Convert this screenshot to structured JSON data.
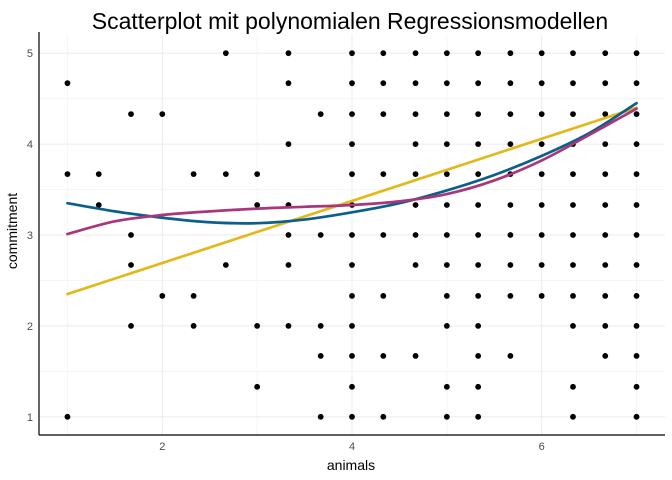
{
  "chart_data": {
    "type": "scatter",
    "title": "Scatterplot mit polynomialen Regressionsmodellen",
    "xlabel": "animals",
    "ylabel": "commitment",
    "xlim": [
      0.7,
      7.3
    ],
    "ylim": [
      0.8,
      5.2
    ],
    "x_ticks": [
      2,
      4,
      6
    ],
    "y_ticks": [
      1,
      2,
      3,
      4,
      5
    ],
    "x_minor": [
      1,
      3,
      5,
      7
    ],
    "y_minor": [
      1.5,
      2.5,
      3.5,
      4.5
    ],
    "grid": true,
    "legend": "none",
    "points": [
      [
        1,
        1
      ],
      [
        1,
        3.67
      ],
      [
        1,
        4.67
      ],
      [
        1.33,
        3.33
      ],
      [
        1.33,
        3.67
      ],
      [
        1.67,
        2
      ],
      [
        1.67,
        2.67
      ],
      [
        1.67,
        3
      ],
      [
        1.67,
        4.33
      ],
      [
        2,
        2.33
      ],
      [
        2,
        4.33
      ],
      [
        2.33,
        2
      ],
      [
        2.33,
        2.33
      ],
      [
        2.33,
        3.67
      ],
      [
        2.67,
        2.67
      ],
      [
        2.67,
        3.67
      ],
      [
        2.67,
        5
      ],
      [
        3,
        1.33
      ],
      [
        3,
        2
      ],
      [
        3,
        3.33
      ],
      [
        3,
        3.67
      ],
      [
        3.33,
        2
      ],
      [
        3.33,
        2.67
      ],
      [
        3.33,
        3
      ],
      [
        3.33,
        3.33
      ],
      [
        3.33,
        4
      ],
      [
        3.33,
        4.67
      ],
      [
        3.33,
        5
      ],
      [
        3.67,
        1
      ],
      [
        3.67,
        1.67
      ],
      [
        3.67,
        2
      ],
      [
        3.67,
        3
      ],
      [
        3.67,
        4.33
      ],
      [
        4,
        1
      ],
      [
        4,
        1.33
      ],
      [
        4,
        1.67
      ],
      [
        4,
        2
      ],
      [
        4,
        2.33
      ],
      [
        4,
        2.67
      ],
      [
        4,
        3
      ],
      [
        4,
        3.33
      ],
      [
        4,
        3.67
      ],
      [
        4,
        4
      ],
      [
        4,
        4.33
      ],
      [
        4,
        4.67
      ],
      [
        4,
        5
      ],
      [
        4.33,
        1
      ],
      [
        4.33,
        1.67
      ],
      [
        4.33,
        2.33
      ],
      [
        4.33,
        3
      ],
      [
        4.33,
        3.67
      ],
      [
        4.33,
        4.33
      ],
      [
        4.33,
        4.67
      ],
      [
        4.33,
        5
      ],
      [
        4.67,
        1.67
      ],
      [
        4.67,
        2.67
      ],
      [
        4.67,
        3
      ],
      [
        4.67,
        3.33
      ],
      [
        4.67,
        3.67
      ],
      [
        4.67,
        4
      ],
      [
        4.67,
        4.33
      ],
      [
        4.67,
        4.67
      ],
      [
        4.67,
        5
      ],
      [
        5,
        1
      ],
      [
        5,
        1.33
      ],
      [
        5,
        2
      ],
      [
        5,
        2.33
      ],
      [
        5,
        2.67
      ],
      [
        5,
        3
      ],
      [
        5,
        3.33
      ],
      [
        5,
        3.67
      ],
      [
        5,
        4
      ],
      [
        5,
        4.33
      ],
      [
        5,
        4.67
      ],
      [
        5,
        5
      ],
      [
        5.33,
        1
      ],
      [
        5.33,
        1.33
      ],
      [
        5.33,
        1.67
      ],
      [
        5.33,
        2
      ],
      [
        5.33,
        2.33
      ],
      [
        5.33,
        2.67
      ],
      [
        5.33,
        3
      ],
      [
        5.33,
        3.33
      ],
      [
        5.33,
        3.67
      ],
      [
        5.33,
        4
      ],
      [
        5.33,
        4.33
      ],
      [
        5.33,
        4.67
      ],
      [
        5.33,
        5
      ],
      [
        5.67,
        1.67
      ],
      [
        5.67,
        2.33
      ],
      [
        5.67,
        2.67
      ],
      [
        5.67,
        3
      ],
      [
        5.67,
        3.33
      ],
      [
        5.67,
        3.67
      ],
      [
        5.67,
        4
      ],
      [
        5.67,
        4.33
      ],
      [
        5.67,
        4.67
      ],
      [
        5.67,
        5
      ],
      [
        6,
        2.33
      ],
      [
        6,
        2.67
      ],
      [
        6,
        3
      ],
      [
        6,
        3.33
      ],
      [
        6,
        3.67
      ],
      [
        6,
        4
      ],
      [
        6,
        4.33
      ],
      [
        6,
        4.67
      ],
      [
        6,
        5
      ],
      [
        6.33,
        1
      ],
      [
        6.33,
        1.33
      ],
      [
        6.33,
        2
      ],
      [
        6.33,
        2.33
      ],
      [
        6.33,
        2.67
      ],
      [
        6.33,
        3
      ],
      [
        6.33,
        3.33
      ],
      [
        6.33,
        3.67
      ],
      [
        6.33,
        4
      ],
      [
        6.33,
        4.33
      ],
      [
        6.33,
        4.67
      ],
      [
        6.33,
        5
      ],
      [
        6.67,
        1.67
      ],
      [
        6.67,
        2
      ],
      [
        6.67,
        2.33
      ],
      [
        6.67,
        2.67
      ],
      [
        6.67,
        3
      ],
      [
        6.67,
        3.33
      ],
      [
        6.67,
        3.67
      ],
      [
        6.67,
        4
      ],
      [
        6.67,
        4.33
      ],
      [
        6.67,
        4.67
      ],
      [
        6.67,
        5
      ],
      [
        7,
        1
      ],
      [
        7,
        1.33
      ],
      [
        7,
        1.67
      ],
      [
        7,
        2
      ],
      [
        7,
        2.33
      ],
      [
        7,
        2.67
      ],
      [
        7,
        3
      ],
      [
        7,
        3.33
      ],
      [
        7,
        3.67
      ],
      [
        7,
        4
      ],
      [
        7,
        4.33
      ],
      [
        7,
        4.67
      ],
      [
        7,
        5
      ]
    ],
    "point_color": "#000000",
    "regression_lines": [
      {
        "degree": 1,
        "color": "#e3b81c",
        "x": [
          1,
          7
        ],
        "y": [
          2.35,
          4.4
        ]
      },
      {
        "degree": 2,
        "color": "#0b5f8a",
        "x": [
          1,
          1.5,
          2,
          2.5,
          3,
          3.5,
          4,
          4.5,
          5,
          5.5,
          6,
          6.5,
          7
        ],
        "y": [
          3.35,
          3.26,
          3.19,
          3.14,
          3.13,
          3.17,
          3.25,
          3.35,
          3.49,
          3.66,
          3.87,
          4.12,
          4.45
        ]
      },
      {
        "degree": 3,
        "color": "#a8377a",
        "x": [
          1,
          1.5,
          2,
          2.5,
          3,
          3.5,
          4,
          4.5,
          5,
          5.5,
          6,
          6.5,
          7
        ],
        "y": [
          3.01,
          3.15,
          3.22,
          3.26,
          3.29,
          3.31,
          3.33,
          3.37,
          3.45,
          3.6,
          3.82,
          4.1,
          4.39
        ]
      }
    ]
  }
}
